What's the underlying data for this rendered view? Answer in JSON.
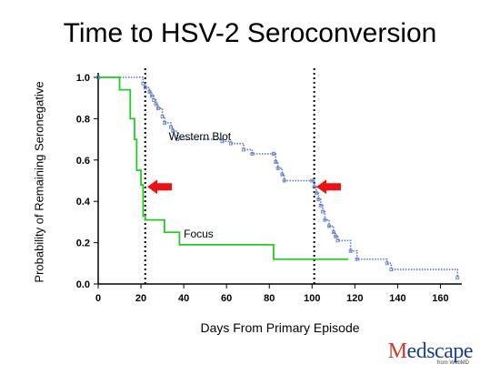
{
  "slide": {
    "title": "Time to HSV-2 Seroconversion"
  },
  "brand": {
    "initial": "M",
    "rest": "edscape",
    "sub": "from WebMD"
  },
  "colors": {
    "western_blot": "#5577cc",
    "focus": "#22cc22",
    "arrow": "#ee1111",
    "axis": "#000000"
  },
  "chart_data": {
    "type": "line",
    "title": "Time to HSV-2 Seroconversion",
    "xlabel": "Days From Primary Episode",
    "ylabel": "Probability of Remaining Seronegative",
    "xlim": [
      0,
      170
    ],
    "ylim": [
      0,
      1.0
    ],
    "x_ticks": [
      "0",
      "20",
      "40",
      "60",
      "80",
      "100",
      "120",
      "140",
      "160"
    ],
    "y_ticks": [
      "0.0",
      "0.2",
      "0.4",
      "0.6",
      "0.8",
      "1.0"
    ],
    "step": true,
    "series": [
      {
        "name": "Western Blot",
        "style": "dotted",
        "x": [
          0,
          21,
          22,
          24,
          25,
          26,
          27,
          28,
          30,
          31,
          34,
          35,
          37,
          58,
          62,
          68,
          72,
          82,
          83,
          84,
          86,
          87,
          100,
          101,
          102,
          103,
          104,
          105,
          106,
          108,
          110,
          111,
          112,
          118,
          121,
          135,
          137,
          168
        ],
        "y": [
          1.0,
          0.97,
          0.95,
          0.93,
          0.91,
          0.89,
          0.87,
          0.85,
          0.81,
          0.78,
          0.76,
          0.74,
          0.7,
          0.69,
          0.68,
          0.65,
          0.63,
          0.63,
          0.59,
          0.56,
          0.53,
          0.5,
          0.5,
          0.47,
          0.44,
          0.41,
          0.38,
          0.35,
          0.31,
          0.28,
          0.25,
          0.23,
          0.21,
          0.16,
          0.12,
          0.1,
          0.07,
          0.03
        ]
      },
      {
        "name": "Focus",
        "style": "solid",
        "x": [
          0,
          10,
          15,
          17,
          18,
          20,
          21,
          22,
          31,
          38,
          82,
          117
        ],
        "y": [
          1.0,
          0.94,
          0.8,
          0.7,
          0.55,
          0.48,
          0.33,
          0.31,
          0.25,
          0.19,
          0.12,
          0.12
        ]
      }
    ],
    "vlines": [
      22,
      101
    ],
    "annotations": [
      {
        "text": "Western Blot",
        "x": 33,
        "y": 0.695
      },
      {
        "text": "Focus",
        "x": 40,
        "y": 0.225
      }
    ],
    "arrows": [
      {
        "x": 23,
        "y": 0.47
      },
      {
        "x": 102,
        "y": 0.47
      }
    ]
  }
}
